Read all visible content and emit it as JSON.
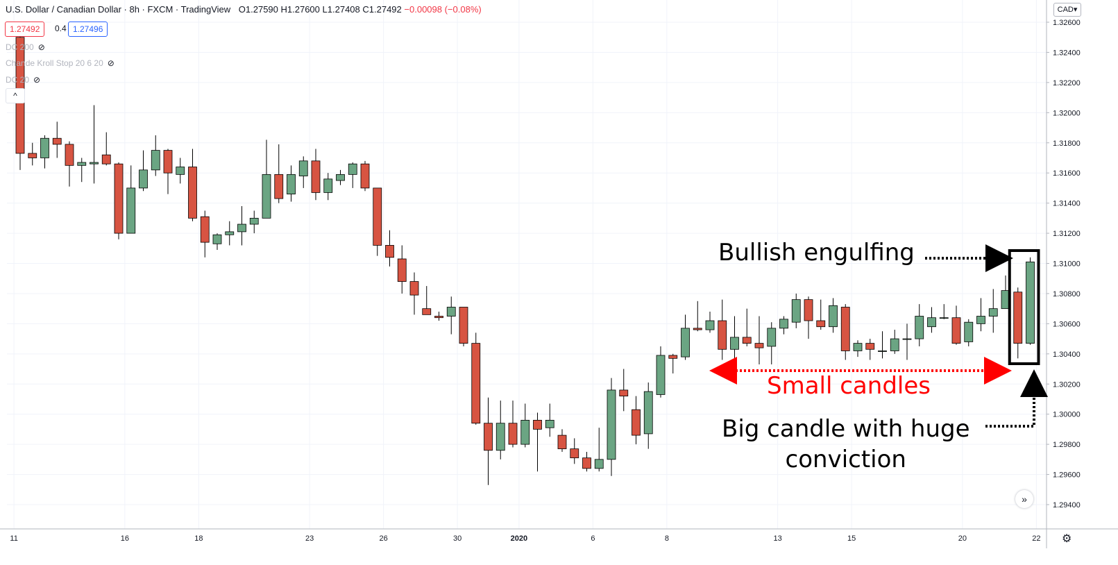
{
  "header": {
    "title": "U.S. Dollar / Canadian Dollar · 8h · FXCM · TradingView",
    "open": "O1.27590",
    "high": "H1.27600",
    "low": "L1.27408",
    "close": "C1.27492",
    "change": "−0.00098 (−0.08%)",
    "bid": "1.27492",
    "spread": "0.4",
    "ask": "1.27496"
  },
  "indicators": [
    {
      "label": "DC 200",
      "icon": "eye-hidden-icon"
    },
    {
      "label": "Chande Kroll Stop 20 6 20",
      "icon": "eye-hidden-icon"
    },
    {
      "label": "DC 20",
      "icon": "eye-hidden-icon"
    }
  ],
  "controls": {
    "collapse": "^",
    "currency": "CAD▾",
    "scroll_right": "»",
    "settings": "⚙"
  },
  "annotations": {
    "engulfing": "Bullish engulfing",
    "small": "Small candles",
    "big_line1": "Big candle with huge",
    "big_line2": "conviction"
  },
  "colors": {
    "up": "#6ba583",
    "down": "#d75442",
    "grid": "#f0f3fa",
    "axis_text": "#131722",
    "red_arrow": "#ff0000"
  },
  "chart_data": {
    "type": "candlestick",
    "ylim": [
      1.293,
      1.3265
    ],
    "y_ticks": [
      "1.32600",
      "1.32400",
      "1.32200",
      "1.32000",
      "1.31800",
      "1.31600",
      "1.31400",
      "1.31200",
      "1.31000",
      "1.30800",
      "1.30600",
      "1.30400",
      "1.30200",
      "1.30000",
      "1.29800",
      "1.29600",
      "1.29400"
    ],
    "x_ticks": [
      {
        "index": -0.5,
        "label": "11"
      },
      {
        "index": 8.5,
        "label": "16"
      },
      {
        "index": 14.5,
        "label": "18"
      },
      {
        "index": 23.5,
        "label": "23"
      },
      {
        "index": 29.5,
        "label": "26"
      },
      {
        "index": 35.5,
        "label": "30"
      },
      {
        "index": 40.5,
        "label": "2020",
        "bold": true
      },
      {
        "index": 46.5,
        "label": "6"
      },
      {
        "index": 52.5,
        "label": "8"
      },
      {
        "index": 61.5,
        "label": "13"
      },
      {
        "index": 67.5,
        "label": "15"
      },
      {
        "index": 76.5,
        "label": "20"
      },
      {
        "index": 82.5,
        "label": "22"
      }
    ],
    "candles": [
      [
        1.325,
        1.3255,
        1.3162,
        1.3173
      ],
      [
        1.3173,
        1.318,
        1.3165,
        1.317
      ],
      [
        1.317,
        1.3185,
        1.3163,
        1.3183
      ],
      [
        1.3183,
        1.3194,
        1.317,
        1.3179
      ],
      [
        1.3179,
        1.3181,
        1.3151,
        1.3165
      ],
      [
        1.3165,
        1.317,
        1.3154,
        1.3167
      ],
      [
        1.3166,
        1.3205,
        1.3153,
        1.3167
      ],
      [
        1.3172,
        1.3187,
        1.3165,
        1.3166
      ],
      [
        1.3166,
        1.3167,
        1.3116,
        1.312
      ],
      [
        1.312,
        1.3165,
        1.312,
        1.315
      ],
      [
        1.315,
        1.3175,
        1.3148,
        1.3162
      ],
      [
        1.3162,
        1.3185,
        1.3158,
        1.3175
      ],
      [
        1.3175,
        1.3176,
        1.3146,
        1.316
      ],
      [
        1.3159,
        1.317,
        1.3153,
        1.3164
      ],
      [
        1.3164,
        1.3176,
        1.3128,
        1.313
      ],
      [
        1.3131,
        1.3135,
        1.3104,
        1.3114
      ],
      [
        1.3113,
        1.312,
        1.3109,
        1.3119
      ],
      [
        1.3119,
        1.3128,
        1.3112,
        1.3121
      ],
      [
        1.3121,
        1.3138,
        1.3112,
        1.3126
      ],
      [
        1.3126,
        1.3135,
        1.312,
        1.313
      ],
      [
        1.313,
        1.3182,
        1.313,
        1.3159
      ],
      [
        1.3159,
        1.3179,
        1.314,
        1.3143
      ],
      [
        1.3146,
        1.3165,
        1.3141,
        1.3159
      ],
      [
        1.3158,
        1.3171,
        1.315,
        1.3168
      ],
      [
        1.3168,
        1.3176,
        1.3142,
        1.3147
      ],
      [
        1.3147,
        1.316,
        1.3142,
        1.3156
      ],
      [
        1.3155,
        1.3162,
        1.3152,
        1.3159
      ],
      [
        1.3159,
        1.3167,
        1.315,
        1.3166
      ],
      [
        1.3166,
        1.3168,
        1.3148,
        1.315
      ],
      [
        1.315,
        1.315,
        1.3105,
        1.3112
      ],
      [
        1.3112,
        1.3122,
        1.3098,
        1.3104
      ],
      [
        1.3103,
        1.3112,
        1.308,
        1.3088
      ],
      [
        1.3088,
        1.3094,
        1.3066,
        1.3079
      ],
      [
        1.307,
        1.3085,
        1.3066,
        1.3066
      ],
      [
        1.3065,
        1.3068,
        1.3062,
        1.3064
      ],
      [
        1.3065,
        1.3078,
        1.3053,
        1.3071
      ],
      [
        1.3071,
        1.3071,
        1.3045,
        1.3047
      ],
      [
        1.3047,
        1.3054,
        1.2993,
        1.2994
      ],
      [
        1.2994,
        1.3011,
        1.2953,
        1.2976
      ],
      [
        1.2976,
        1.3009,
        1.297,
        1.2994
      ],
      [
        1.2994,
        1.3009,
        1.2978,
        1.298
      ],
      [
        1.298,
        1.3007,
        1.2978,
        1.2996
      ],
      [
        1.2996,
        1.3001,
        1.2962,
        1.299
      ],
      [
        1.2991,
        1.3007,
        1.2985,
        1.2996
      ],
      [
        1.2986,
        1.299,
        1.2975,
        1.2977
      ],
      [
        1.2977,
        1.2984,
        1.2967,
        1.2971
      ],
      [
        1.2971,
        1.2975,
        1.2962,
        1.2964
      ],
      [
        1.2964,
        1.2991,
        1.2962,
        1.297
      ],
      [
        1.297,
        1.3024,
        1.2959,
        1.3016
      ],
      [
        1.3016,
        1.303,
        1.3002,
        1.3012
      ],
      [
        1.3003,
        1.3012,
        1.298,
        1.2986
      ],
      [
        1.2987,
        1.3021,
        1.2977,
        1.3015
      ],
      [
        1.3013,
        1.3045,
        1.3011,
        1.3039
      ],
      [
        1.3039,
        1.304,
        1.3027,
        1.3037
      ],
      [
        1.3038,
        1.3066,
        1.3036,
        1.3057
      ],
      [
        1.3057,
        1.3075,
        1.3055,
        1.3056
      ],
      [
        1.3056,
        1.3068,
        1.3054,
        1.3062
      ],
      [
        1.3062,
        1.3076,
        1.3036,
        1.3043
      ],
      [
        1.3043,
        1.3065,
        1.3037,
        1.3051
      ],
      [
        1.3051,
        1.307,
        1.3045,
        1.3047
      ],
      [
        1.3047,
        1.3065,
        1.3033,
        1.3044
      ],
      [
        1.3045,
        1.3061,
        1.3033,
        1.3057
      ],
      [
        1.3057,
        1.3065,
        1.3053,
        1.3063
      ],
      [
        1.3061,
        1.308,
        1.3057,
        1.3076
      ],
      [
        1.3076,
        1.3078,
        1.305,
        1.3062
      ],
      [
        1.3062,
        1.3076,
        1.3056,
        1.3058
      ],
      [
        1.3058,
        1.3077,
        1.3054,
        1.3072
      ],
      [
        1.3071,
        1.3073,
        1.3036,
        1.3042
      ],
      [
        1.3042,
        1.3049,
        1.3038,
        1.3047
      ],
      [
        1.3047,
        1.305,
        1.3036,
        1.3043
      ],
      [
        1.3042,
        1.3055,
        1.3037,
        1.3042
      ],
      [
        1.3042,
        1.3056,
        1.304,
        1.305
      ],
      [
        1.305,
        1.306,
        1.3036,
        1.305
      ],
      [
        1.305,
        1.3073,
        1.3045,
        1.3065
      ],
      [
        1.3058,
        1.3071,
        1.3054,
        1.3064
      ],
      [
        1.3064,
        1.3073,
        1.3063,
        1.3064
      ],
      [
        1.3064,
        1.3072,
        1.3046,
        1.3047
      ],
      [
        1.3048,
        1.3063,
        1.3045,
        1.3061
      ],
      [
        1.306,
        1.3077,
        1.3055,
        1.3065
      ],
      [
        1.3065,
        1.3083,
        1.3054,
        1.307
      ],
      [
        1.307,
        1.3092,
        1.307,
        1.3082
      ],
      [
        1.3081,
        1.3084,
        1.3037,
        1.3047
      ],
      [
        1.3047,
        1.3104,
        1.3046,
        1.3101
      ]
    ]
  }
}
